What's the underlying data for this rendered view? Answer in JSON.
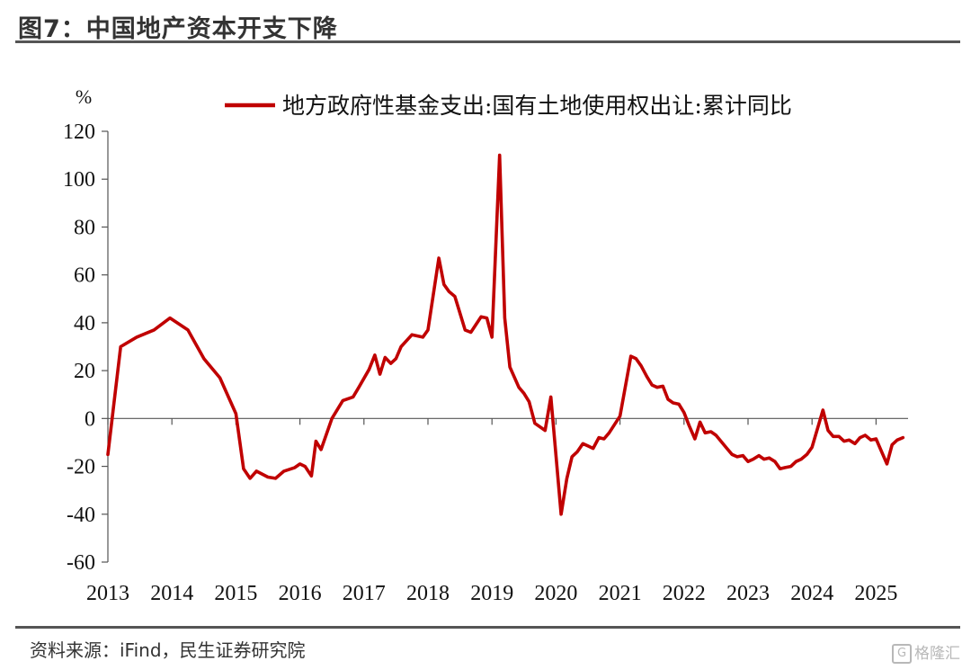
{
  "header": {
    "title": "图7：中国地产资本开支下降"
  },
  "footer": {
    "source": "资料来源：iFind，民生证券研究院",
    "watermark_text": "格隆汇",
    "watermark_icon": "g-logo-icon"
  },
  "chart_data": {
    "type": "line",
    "title": "",
    "xlabel": "",
    "ylabel": "%",
    "ylim": [
      -60,
      120
    ],
    "yticks": [
      120,
      100,
      80,
      60,
      40,
      20,
      0,
      -20,
      -40,
      -60
    ],
    "xlim": [
      2013.0,
      2025.5
    ],
    "xticks": [
      2013,
      2014,
      2015,
      2016,
      2017,
      2018,
      2019,
      2020,
      2021,
      2022,
      2023,
      2024,
      2025
    ],
    "grid": false,
    "legend_position": "top",
    "series": [
      {
        "name": "地方政府性基金支出:国有土地使用权出让:累计同比",
        "color": "#c00000",
        "points": [
          [
            2013.0,
            -15
          ],
          [
            2013.2,
            30
          ],
          [
            2013.45,
            34
          ],
          [
            2013.72,
            37
          ],
          [
            2013.97,
            42
          ],
          [
            2014.25,
            37
          ],
          [
            2014.5,
            25
          ],
          [
            2014.75,
            17
          ],
          [
            2015.0,
            2
          ],
          [
            2015.12,
            -21
          ],
          [
            2015.22,
            -25
          ],
          [
            2015.32,
            -22
          ],
          [
            2015.5,
            -24.5
          ],
          [
            2015.62,
            -25
          ],
          [
            2015.75,
            -22
          ],
          [
            2015.92,
            -20.5
          ],
          [
            2016.0,
            -19
          ],
          [
            2016.08,
            -20
          ],
          [
            2016.18,
            -24
          ],
          [
            2016.25,
            -9.5
          ],
          [
            2016.33,
            -13
          ],
          [
            2016.5,
            0
          ],
          [
            2016.67,
            7.5
          ],
          [
            2016.83,
            9
          ],
          [
            2016.92,
            13
          ],
          [
            2017.08,
            20.5
          ],
          [
            2017.17,
            26.5
          ],
          [
            2017.25,
            18.5
          ],
          [
            2017.33,
            25.5
          ],
          [
            2017.42,
            23
          ],
          [
            2017.5,
            25
          ],
          [
            2017.58,
            30
          ],
          [
            2017.75,
            35
          ],
          [
            2017.92,
            34
          ],
          [
            2018.0,
            37
          ],
          [
            2018.17,
            67
          ],
          [
            2018.25,
            56
          ],
          [
            2018.33,
            53
          ],
          [
            2018.42,
            51
          ],
          [
            2018.5,
            44
          ],
          [
            2018.58,
            37
          ],
          [
            2018.67,
            36
          ],
          [
            2018.83,
            42.5
          ],
          [
            2018.92,
            42
          ],
          [
            2019.0,
            34
          ],
          [
            2019.12,
            110
          ],
          [
            2019.2,
            42
          ],
          [
            2019.28,
            21.5
          ],
          [
            2019.42,
            13
          ],
          [
            2019.5,
            10.5
          ],
          [
            2019.58,
            7
          ],
          [
            2019.67,
            -2
          ],
          [
            2019.83,
            -5
          ],
          [
            2019.92,
            9
          ],
          [
            2020.08,
            -40
          ],
          [
            2020.17,
            -25
          ],
          [
            2020.25,
            -16
          ],
          [
            2020.33,
            -14
          ],
          [
            2020.42,
            -10.5
          ],
          [
            2020.5,
            -11.5
          ],
          [
            2020.58,
            -12.5
          ],
          [
            2020.67,
            -8
          ],
          [
            2020.75,
            -8.5
          ],
          [
            2020.83,
            -6
          ],
          [
            2021.0,
            1
          ],
          [
            2021.17,
            26
          ],
          [
            2021.25,
            25
          ],
          [
            2021.33,
            22
          ],
          [
            2021.42,
            17.5
          ],
          [
            2021.5,
            14
          ],
          [
            2021.58,
            13
          ],
          [
            2021.67,
            13.5
          ],
          [
            2021.75,
            8
          ],
          [
            2021.83,
            6.5
          ],
          [
            2021.92,
            6
          ],
          [
            2022.0,
            2.5
          ],
          [
            2022.08,
            -3
          ],
          [
            2022.17,
            -8.5
          ],
          [
            2022.25,
            -1.5
          ],
          [
            2022.33,
            -6
          ],
          [
            2022.42,
            -5.5
          ],
          [
            2022.5,
            -7
          ],
          [
            2022.67,
            -12.5
          ],
          [
            2022.75,
            -15
          ],
          [
            2022.83,
            -16
          ],
          [
            2022.92,
            -15.5
          ],
          [
            2023.0,
            -18
          ],
          [
            2023.08,
            -17
          ],
          [
            2023.17,
            -15.5
          ],
          [
            2023.25,
            -17
          ],
          [
            2023.33,
            -16.5
          ],
          [
            2023.42,
            -18
          ],
          [
            2023.5,
            -21
          ],
          [
            2023.58,
            -20.5
          ],
          [
            2023.67,
            -20
          ],
          [
            2023.75,
            -18
          ],
          [
            2023.83,
            -17
          ],
          [
            2023.92,
            -15
          ],
          [
            2024.0,
            -12
          ],
          [
            2024.17,
            3.5
          ],
          [
            2024.25,
            -5
          ],
          [
            2024.33,
            -7.5
          ],
          [
            2024.42,
            -7.5
          ],
          [
            2024.5,
            -9.5
          ],
          [
            2024.58,
            -9
          ],
          [
            2024.67,
            -10.5
          ],
          [
            2024.75,
            -8
          ],
          [
            2024.83,
            -7
          ],
          [
            2024.92,
            -9
          ],
          [
            2025.0,
            -8.5
          ],
          [
            2025.17,
            -19
          ],
          [
            2025.25,
            -11
          ],
          [
            2025.33,
            -9
          ],
          [
            2025.42,
            -8
          ]
        ]
      }
    ]
  }
}
